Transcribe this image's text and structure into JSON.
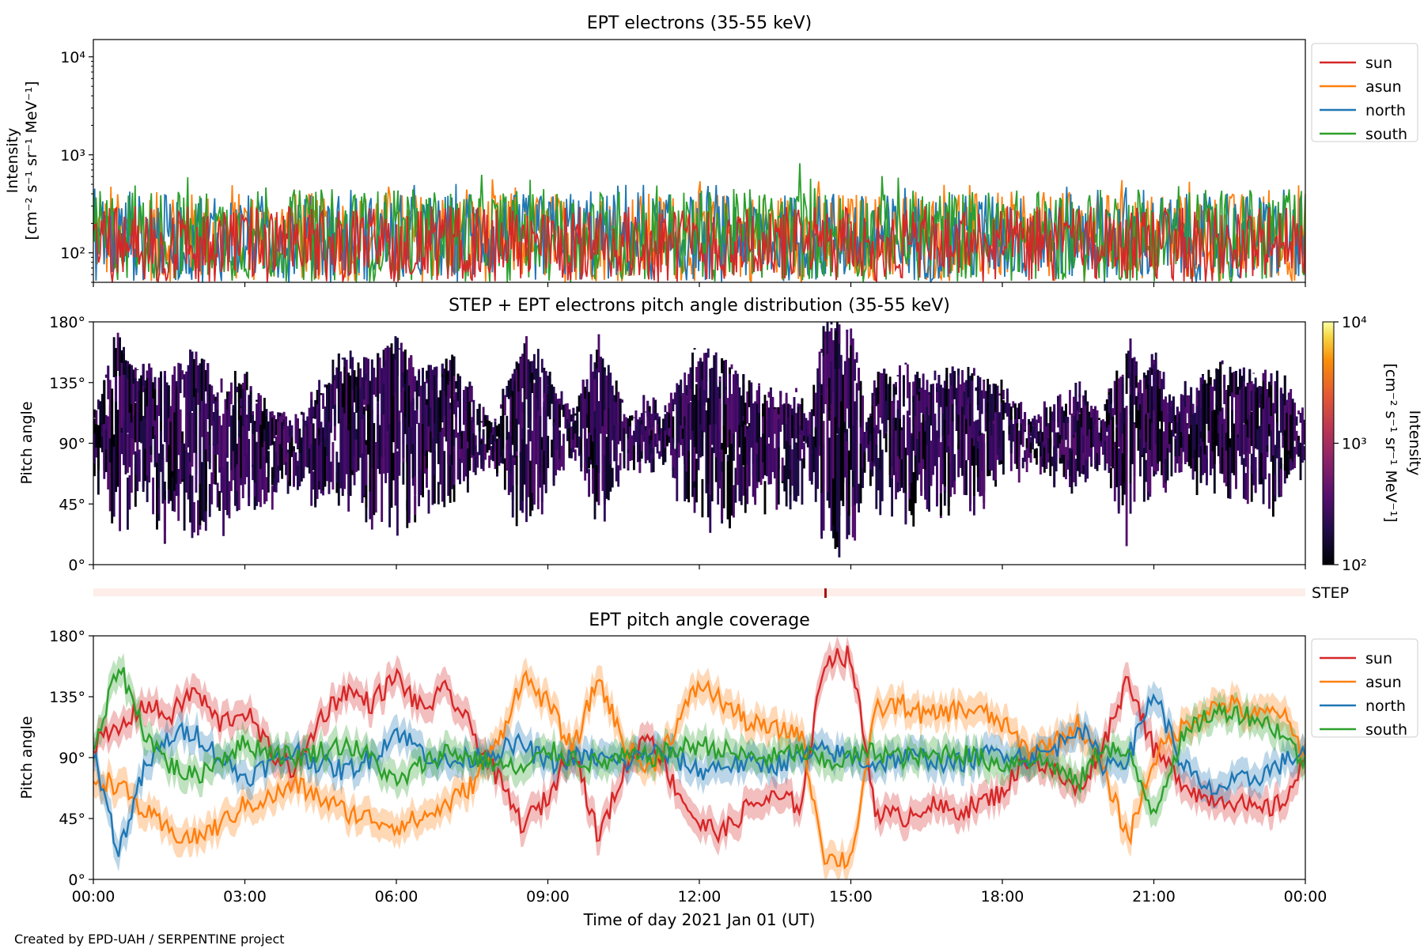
{
  "footer": "Created by EPD-UAH / SERPENTINE project",
  "colors": {
    "sun": "#d62728",
    "asun": "#ff7f0e",
    "north": "#1f77b4",
    "south": "#2ca02c",
    "step_strip": "#fdeee9",
    "step_mark": "#a50f15"
  },
  "step_label": "STEP",
  "chart_data": [
    {
      "type": "line",
      "title": "EPT electrons (35-55 keV)",
      "ylabel_line1": "Intensity",
      "ylabel_line2": "[cm⁻² s⁻¹ sr⁻¹ MeV⁻¹]",
      "y_scale": "log",
      "ylim": [
        50,
        15000
      ],
      "y_ticks": [
        {
          "value": 100,
          "label": "10²"
        },
        {
          "value": 1000,
          "label": "10³"
        },
        {
          "value": 10000,
          "label": "10⁴"
        }
      ],
      "xlim_hours": [
        0,
        24
      ],
      "legend_position": "upper-right-outside",
      "series": [
        {
          "name": "sun",
          "color": "#d62728",
          "typical_range": [
            50,
            300
          ]
        },
        {
          "name": "asun",
          "color": "#ff7f0e",
          "typical_range": [
            50,
            420
          ]
        },
        {
          "name": "north",
          "color": "#1f77b4",
          "typical_range": [
            50,
            400
          ]
        },
        {
          "name": "south",
          "color": "#2ca02c",
          "typical_range": [
            50,
            450
          ]
        }
      ],
      "spikes": [
        {
          "series": "south",
          "hour": 14.0,
          "value": 820
        }
      ]
    },
    {
      "type": "heatmap",
      "title": "STEP + EPT electrons pitch angle distribution (35-55 keV)",
      "ylabel": "Pitch angle",
      "ylim": [
        0,
        180
      ],
      "y_ticks": [
        0,
        45,
        90,
        135,
        180
      ],
      "y_tick_labels": [
        "0°",
        "45°",
        "90°",
        "135°",
        "180°"
      ],
      "xlim_hours": [
        0,
        24
      ],
      "colorbar": {
        "label_line1": "Intensity",
        "label_line2": "[cm⁻² s⁻¹ sr⁻¹ MeV⁻¹]",
        "scale": "log",
        "range": [
          100,
          10000
        ],
        "tick_labels": [
          "10²",
          "10³",
          "10⁴"
        ],
        "colormap": "inferno"
      }
    },
    {
      "type": "line",
      "title": "EPT pitch angle coverage",
      "ylabel": "Pitch angle",
      "xlabel": "Time of day 2021 Jan 01 (UT)",
      "ylim": [
        0,
        180
      ],
      "y_ticks": [
        0,
        45,
        90,
        135,
        180
      ],
      "y_tick_labels": [
        "0°",
        "45°",
        "90°",
        "135°",
        "180°"
      ],
      "xlim_hours": [
        0,
        24
      ],
      "x_ticks_hours": [
        0,
        3,
        6,
        9,
        12,
        15,
        18,
        21,
        24
      ],
      "x_tick_labels": [
        "00:00",
        "03:00",
        "06:00",
        "09:00",
        "12:00",
        "15:00",
        "18:00",
        "21:00",
        "00:00"
      ],
      "legend_position": "upper-right-outside",
      "series": [
        {
          "name": "sun",
          "color": "#d62728",
          "x": [
            0,
            0.5,
            1,
            1.5,
            2,
            2.5,
            3,
            3.5,
            4,
            4.5,
            5,
            5.5,
            6,
            6.5,
            7,
            7.5,
            8,
            8.5,
            9,
            9.5,
            10,
            10.5,
            11,
            11.5,
            12,
            12.5,
            13,
            13.5,
            14,
            14.5,
            15,
            15.5,
            16,
            16.5,
            17,
            17.5,
            18,
            18.5,
            19,
            19.5,
            20,
            20.5,
            21,
            21.5,
            22,
            22.5,
            23,
            23.5,
            24
          ],
          "y": [
            100,
            110,
            130,
            120,
            140,
            115,
            125,
            95,
            80,
            120,
            140,
            130,
            150,
            125,
            140,
            110,
            75,
            40,
            60,
            100,
            30,
            80,
            110,
            70,
            40,
            35,
            55,
            60,
            55,
            165,
            165,
            50,
            45,
            55,
            50,
            55,
            65,
            90,
            80,
            65,
            100,
            150,
            95,
            75,
            60,
            60,
            50,
            55,
            85
          ]
        },
        {
          "name": "asun",
          "color": "#ff7f0e",
          "x": [
            0,
            0.5,
            1,
            1.5,
            2,
            2.5,
            3,
            3.5,
            4,
            4.5,
            5,
            5.5,
            6,
            6.5,
            7,
            7.5,
            8,
            8.5,
            9,
            9.5,
            10,
            10.5,
            11,
            11.5,
            12,
            12.5,
            13,
            13.5,
            14,
            14.5,
            15,
            15.5,
            16,
            16.5,
            17,
            17.5,
            18,
            18.5,
            19,
            19.5,
            20,
            20.5,
            21,
            21.5,
            22,
            22.5,
            23,
            23.5,
            24
          ],
          "y": [
            75,
            70,
            50,
            35,
            30,
            40,
            55,
            60,
            70,
            60,
            50,
            45,
            40,
            45,
            55,
            70,
            100,
            150,
            130,
            95,
            150,
            100,
            80,
            110,
            145,
            130,
            115,
            110,
            110,
            15,
            15,
            125,
            130,
            120,
            125,
            125,
            115,
            95,
            100,
            115,
            80,
            30,
            90,
            110,
            125,
            130,
            120,
            125,
            90
          ]
        },
        {
          "name": "north",
          "color": "#1f77b4",
          "x": [
            0,
            0.5,
            1,
            1.5,
            2,
            2.5,
            3,
            3.5,
            4,
            4.5,
            5,
            5.5,
            6,
            6.5,
            7,
            7.5,
            8,
            8.5,
            9,
            9.5,
            10,
            10.5,
            11,
            11.5,
            12,
            12.5,
            13,
            13.5,
            14,
            14.5,
            15,
            15.5,
            16,
            16.5,
            17,
            17.5,
            18,
            18.5,
            19,
            19.5,
            20,
            20.5,
            21,
            21.5,
            22,
            22.5,
            23,
            23.5,
            24
          ],
          "y": [
            95,
            20,
            80,
            105,
            110,
            90,
            75,
            85,
            95,
            85,
            80,
            90,
            110,
            95,
            85,
            90,
            95,
            100,
            85,
            90,
            90,
            85,
            95,
            90,
            80,
            85,
            85,
            85,
            90,
            95,
            90,
            85,
            90,
            90,
            85,
            90,
            95,
            90,
            95,
            115,
            85,
            90,
            140,
            90,
            65,
            70,
            75,
            85,
            95
          ]
        },
        {
          "name": "south",
          "color": "#2ca02c",
          "x": [
            0,
            0.5,
            1,
            1.5,
            2,
            2.5,
            3,
            3.5,
            4,
            4.5,
            5,
            5.5,
            6,
            6.5,
            7,
            7.5,
            8,
            8.5,
            9,
            9.5,
            10,
            10.5,
            11,
            11.5,
            12,
            12.5,
            13,
            13.5,
            14,
            14.5,
            15,
            15.5,
            16,
            16.5,
            17,
            17.5,
            18,
            18.5,
            19,
            19.5,
            20,
            20.5,
            21,
            21.5,
            22,
            22.5,
            23,
            23.5,
            24
          ],
          "y": [
            90,
            160,
            110,
            85,
            75,
            90,
            100,
            95,
            90,
            95,
            100,
            90,
            70,
            85,
            95,
            90,
            85,
            80,
            95,
            90,
            85,
            90,
            90,
            95,
            100,
            95,
            90,
            90,
            95,
            85,
            90,
            95,
            90,
            90,
            95,
            90,
            85,
            90,
            85,
            70,
            100,
            90,
            50,
            100,
            120,
            125,
            120,
            110,
            85
          ]
        }
      ]
    }
  ]
}
